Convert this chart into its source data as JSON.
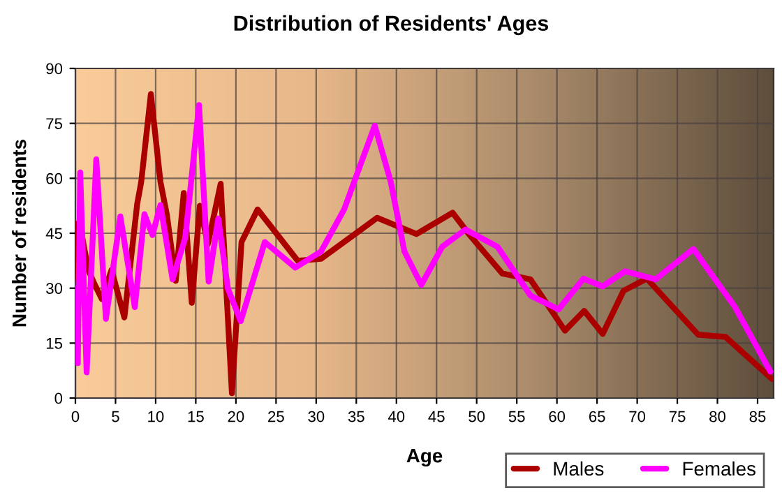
{
  "chart_data": {
    "type": "line",
    "title": "Distribution of Residents' Ages",
    "xlabel": "Age",
    "ylabel": "Number of residents",
    "xlim": [
      0,
      87
    ],
    "xticks": [
      0,
      5,
      10,
      15,
      20,
      25,
      30,
      35,
      40,
      45,
      50,
      55,
      60,
      65,
      70,
      75,
      80,
      85
    ],
    "ylim": [
      0,
      90
    ],
    "yticks": [
      0,
      15,
      30,
      45,
      60,
      75,
      90
    ],
    "grid": true,
    "legend": "bottom right",
    "marker": "none",
    "line_style": "solid",
    "series": [
      {
        "name": "Males",
        "color": "#aa0000",
        "x": [
          0,
          0.4,
          0.8,
          1.6,
          2.4,
          3.3,
          4.5,
          6.1,
          7.7,
          8.2,
          9.4,
          10.6,
          11.4,
          12.5,
          13.5,
          14.5,
          15.5,
          16.5,
          18.1,
          19.5,
          20.7,
          22.7,
          27.7,
          30.6,
          37.6,
          42.5,
          47,
          49.2,
          53.2,
          56.7,
          61,
          63.4,
          65.7,
          68.3,
          71.2,
          77.6,
          81,
          86.8
        ],
        "values": [
          47.6,
          31.8,
          44.5,
          35,
          31,
          27,
          35,
          22,
          53,
          59,
          83,
          59,
          50,
          32,
          56,
          26,
          52.5,
          42,
          58.5,
          1.3,
          42.6,
          51.5,
          37.5,
          38,
          49.2,
          44.8,
          50.6,
          44.3,
          34,
          32.4,
          18.4,
          23.8,
          17.5,
          29.3,
          32.6,
          17.3,
          16.7,
          5.2
        ]
      },
      {
        "name": "Females",
        "color": "#ff00ff",
        "x": [
          0,
          0.3,
          0.6,
          1.4,
          2.6,
          3.8,
          5.6,
          7.4,
          8.6,
          9.6,
          10.6,
          12.1,
          13.7,
          15.4,
          16.6,
          17.8,
          19,
          20.6,
          23.6,
          27.4,
          30.6,
          33.5,
          37.3,
          39.3,
          41,
          43.1,
          45.7,
          48.6,
          52.6,
          56.7,
          60.2,
          63.3,
          65.7,
          68.5,
          72.3,
          77,
          82.2,
          86.6
        ],
        "values": [
          29.8,
          9.5,
          61.6,
          7,
          65.2,
          21.6,
          49.6,
          24.8,
          50.2,
          44.5,
          52.7,
          32.4,
          43.8,
          80,
          31.8,
          49,
          29.9,
          21,
          42.6,
          35.6,
          40,
          51.6,
          74.4,
          59,
          40,
          30.9,
          41.3,
          46,
          41.3,
          28,
          24.2,
          32.6,
          30.5,
          34.6,
          32.4,
          40.7,
          24.8,
          7.2
        ]
      }
    ]
  }
}
